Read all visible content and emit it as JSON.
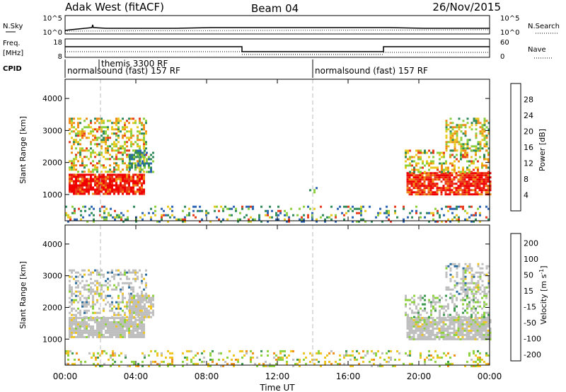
{
  "header": {
    "station": "Adak West (fitACF)",
    "beam": "Beam 04",
    "date": "26/Nov/2015"
  },
  "panels": {
    "nsky": {
      "label": "N.Sky",
      "right_label": "N.Search",
      "left_ticks": [
        "10^5",
        "10^0"
      ],
      "right_ticks": [
        "10^5",
        "10^0"
      ]
    },
    "freq": {
      "label_line1": "Freq.",
      "label_line2": "[MHz]",
      "right_label": "Nave",
      "left_ticks": [
        "18",
        "8"
      ],
      "right_ticks": [
        "60",
        "0"
      ]
    },
    "cpid": {
      "label": "CPID",
      "entries": [
        {
          "time_hr": 0.0,
          "text": "normalsound (fast) 157 RF"
        },
        {
          "time_hr": 1.9,
          "text": "themis 3300 RF"
        },
        {
          "time_hr": 14.0,
          "text": "normalsound (fast) 157 RF"
        }
      ]
    }
  },
  "chart_data": [
    {
      "type": "heatmap",
      "name": "power",
      "ylabel": "Slant Range [km]",
      "ylim": [
        180,
        4600
      ],
      "yticks": [
        "1000",
        "2000",
        "3000",
        "4000"
      ],
      "xlim_hours": [
        0,
        24
      ],
      "colorbar": {
        "label": "Power [dB]",
        "ticks": [
          "4",
          "8",
          "12",
          "16",
          "20",
          "24",
          "28"
        ],
        "colors": [
          "#1a2ee0",
          "#2c64b4",
          "#2f8a5a",
          "#8ccf3c",
          "#e8c81e",
          "#f08a14",
          "#e83a1a",
          "#f00000"
        ]
      },
      "regions_km": [
        {
          "t0": 0.2,
          "t1": 4.5,
          "r0": 1050,
          "r1": 1650,
          "level": "high"
        },
        {
          "t0": 0.2,
          "t1": 4.6,
          "r0": 1700,
          "r1": 3400,
          "level": "mid"
        },
        {
          "t0": 3.6,
          "t1": 5.0,
          "r0": 1700,
          "r1": 2400,
          "level": "low"
        },
        {
          "t0": 19.3,
          "t1": 24.0,
          "r0": 1000,
          "r1": 1700,
          "level": "high"
        },
        {
          "t0": 19.2,
          "t1": 24.0,
          "r0": 1700,
          "r1": 2400,
          "level": "mid"
        },
        {
          "t0": 21.5,
          "t1": 24.0,
          "r0": 2400,
          "r1": 3400,
          "level": "mixed"
        },
        {
          "t0": 0.0,
          "t1": 24.0,
          "r0": 180,
          "r1": 650,
          "level": "ground"
        },
        {
          "t0": 13.8,
          "t1": 14.2,
          "r0": 1100,
          "r1": 1300,
          "level": "low"
        }
      ]
    },
    {
      "type": "heatmap",
      "name": "velocity",
      "ylabel": "Slant Range [km]",
      "ylim": [
        180,
        4600
      ],
      "yticks": [
        "1000",
        "2000",
        "3000",
        "4000"
      ],
      "xlim_hours": [
        0,
        24
      ],
      "xlabel": "Time UT",
      "xticks": [
        "00:00",
        "04:00",
        "08:00",
        "12:00",
        "16:00",
        "20:00",
        "00:00"
      ],
      "colorbar": {
        "label": "Velocity [m s^-1]",
        "ticks": [
          "200",
          "100",
          "50",
          "15",
          "-15",
          "-50",
          "-100",
          "-200"
        ],
        "colors": [
          "#2030c8",
          "#2c6ea0",
          "#3c9a50",
          "#8cd23c",
          "#bebebe",
          "#f0c41e",
          "#f0901a",
          "#e84e1a",
          "#e00000"
        ]
      },
      "regions_km": [
        {
          "t0": 0.2,
          "t1": 4.5,
          "r0": 1050,
          "r1": 1700,
          "level": "zero"
        },
        {
          "t0": 0.2,
          "t1": 4.6,
          "r0": 1700,
          "r1": 3200,
          "level": "zero_sparse"
        },
        {
          "t0": 3.6,
          "t1": 5.0,
          "r0": 1700,
          "r1": 2400,
          "level": "zero"
        },
        {
          "t0": 19.3,
          "t1": 24.0,
          "r0": 1000,
          "r1": 1700,
          "level": "zero"
        },
        {
          "t0": 19.2,
          "t1": 24.0,
          "r0": 1700,
          "r1": 2400,
          "level": "green_mix"
        },
        {
          "t0": 21.5,
          "t1": 24.0,
          "r0": 2400,
          "r1": 3400,
          "level": "zero_sparse"
        },
        {
          "t0": 0.0,
          "t1": 24.0,
          "r0": 180,
          "r1": 650,
          "level": "ground_v"
        }
      ]
    }
  ]
}
